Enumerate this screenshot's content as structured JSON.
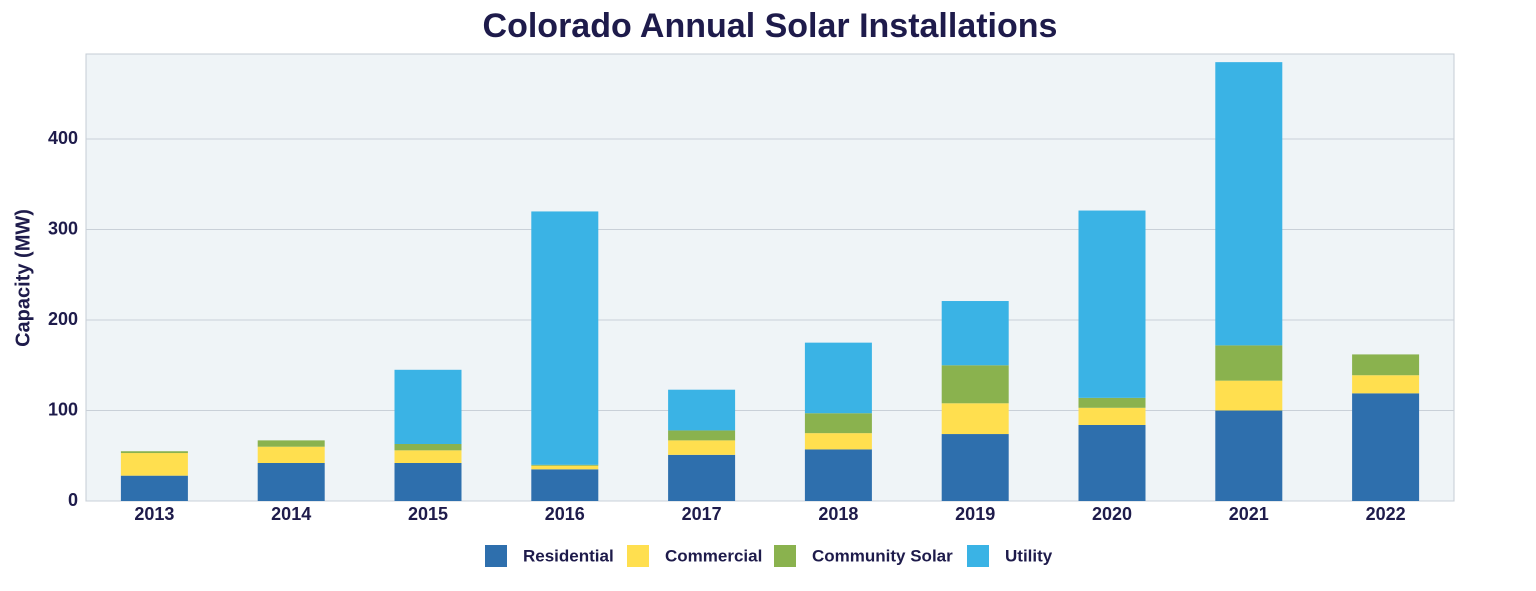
{
  "chart_data": {
    "type": "stacked_bar",
    "title": "Colorado Annual Solar Installations",
    "y_label": "Capacity (MW)",
    "categories": [
      "2013",
      "2014",
      "2015",
      "2016",
      "2017",
      "2018",
      "2019",
      "2020",
      "2021",
      "2022"
    ],
    "series": [
      {
        "name": "Residential",
        "color": "#2e6fad",
        "values": [
          28,
          42,
          42,
          35,
          51,
          57,
          74,
          84,
          100,
          119
        ]
      },
      {
        "name": "Commercial",
        "color": "#ffdf4f",
        "values": [
          25,
          18,
          14,
          4,
          16,
          18,
          34,
          19,
          33,
          20
        ]
      },
      {
        "name": "Community Solar",
        "color": "#8ab24e",
        "values": [
          2,
          7,
          7,
          1,
          11,
          22,
          42,
          11,
          39,
          23
        ]
      },
      {
        "name": "Utility",
        "color": "#3ab3e5",
        "values": [
          0,
          0,
          82,
          280,
          45,
          78,
          71,
          207,
          313,
          0
        ]
      }
    ],
    "ylim": [
      0,
      494
    ],
    "yticks": [
      0,
      100,
      200,
      300,
      400
    ],
    "grid": true
  }
}
